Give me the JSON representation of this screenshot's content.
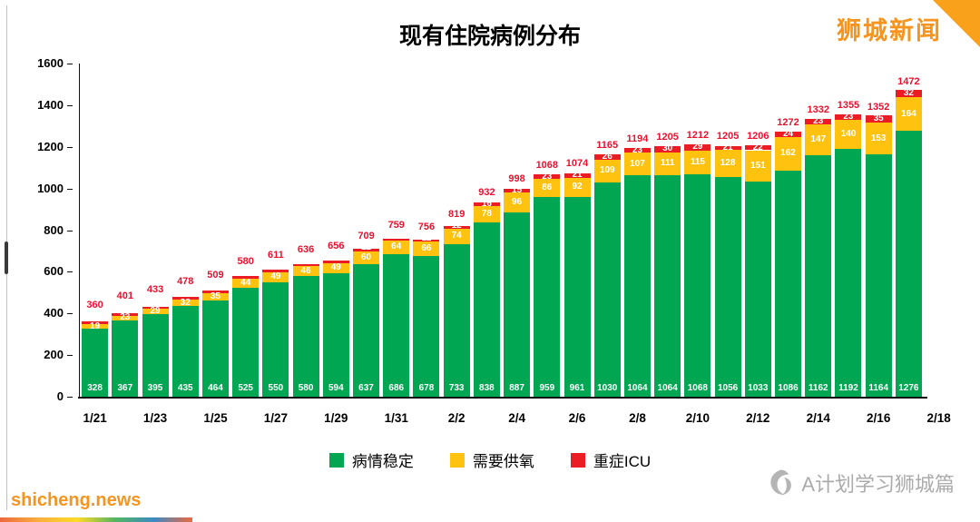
{
  "title": "现有住院病例分布",
  "brand_top_right": "狮城新闻",
  "watermarks": {
    "bottom_left": "shicheng.news",
    "bottom_right": "A计划学习狮城篇"
  },
  "colors": {
    "stable_green": "#00A651",
    "oxygen_yellow": "#FFC20E",
    "icu_red": "#EC1C24",
    "total_label_red": "#E8112D",
    "brand_orange": "#F7941D",
    "watermark_gray": "#ABABAB"
  },
  "legend": [
    {
      "label": "病情稳定",
      "color": "#00A651"
    },
    {
      "label": "需要供氧",
      "color": "#FFC20E"
    },
    {
      "label": "重症ICU",
      "color": "#EC1C24"
    }
  ],
  "chart_data": {
    "type": "bar",
    "stacked": true,
    "title": "现有住院病例分布",
    "xlabel": "",
    "ylabel": "",
    "ylim": [
      0,
      1600
    ],
    "y_ticks": [
      0,
      200,
      400,
      600,
      800,
      1000,
      1200,
      1400,
      1600
    ],
    "x_tick_labels": [
      "1/21",
      "1/23",
      "1/25",
      "1/27",
      "1/29",
      "1/31",
      "2/2",
      "2/4",
      "2/6",
      "2/8",
      "2/10",
      "2/12",
      "2/14",
      "2/16",
      "2/18"
    ],
    "legend_position": "bottom",
    "grid": false,
    "series": [
      {
        "name": "病情稳定",
        "color": "#00A651",
        "values": [
          328,
          367,
          395,
          435,
          464,
          525,
          550,
          580,
          594,
          637,
          686,
          678,
          733,
          838,
          887,
          959,
          961,
          1030,
          1064,
          1064,
          1068,
          1056,
          1033,
          1086,
          1162,
          1192,
          1164,
          1276
        ]
      },
      {
        "name": "需要供氧",
        "color": "#FFC20E",
        "values": [
          19,
          23,
          29,
          32,
          35,
          44,
          49,
          46,
          49,
          60,
          64,
          66,
          74,
          78,
          96,
          86,
          92,
          109,
          107,
          111,
          115,
          128,
          151,
          162,
          147,
          140,
          153,
          164
        ]
      },
      {
        "name": "重症ICU",
        "color": "#EC1C24",
        "values": [
          13,
          11,
          9,
          11,
          10,
          11,
          12,
          10,
          13,
          12,
          9,
          12,
          12,
          16,
          15,
          23,
          21,
          26,
          23,
          30,
          29,
          21,
          22,
          24,
          23,
          23,
          35,
          32
        ]
      }
    ],
    "totals": [
      360,
      401,
      433,
      478,
      509,
      580,
      611,
      636,
      656,
      709,
      759,
      756,
      819,
      932,
      998,
      1068,
      1074,
      1165,
      1194,
      1205,
      1212,
      1205,
      1206,
      1272,
      1332,
      1355,
      1352,
      1472
    ]
  }
}
